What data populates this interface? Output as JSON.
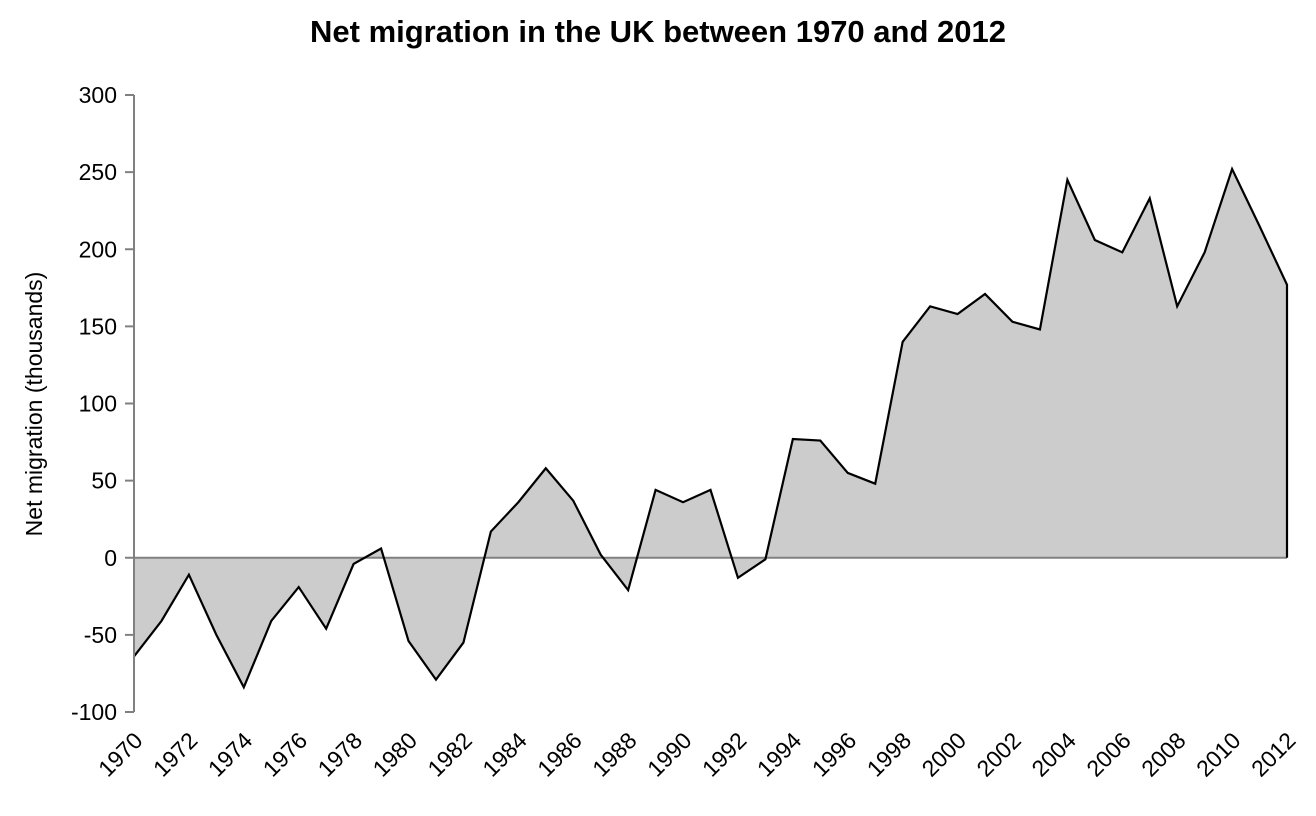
{
  "chart_data": {
    "type": "area",
    "title": "Net migration in the UK between 1970 and 2012",
    "xlabel": "",
    "ylabel": "Net migration (thousands)",
    "x": [
      1970,
      1971,
      1972,
      1973,
      1974,
      1975,
      1976,
      1977,
      1978,
      1979,
      1980,
      1981,
      1982,
      1983,
      1984,
      1985,
      1986,
      1987,
      1988,
      1989,
      1990,
      1991,
      1992,
      1993,
      1994,
      1995,
      1996,
      1997,
      1998,
      1999,
      2000,
      2001,
      2002,
      2003,
      2004,
      2005,
      2006,
      2007,
      2008,
      2009,
      2010,
      2011,
      2012
    ],
    "x_tick_labels": [
      "1970",
      "1972",
      "1974",
      "1976",
      "1978",
      "1980",
      "1982",
      "1984",
      "1986",
      "1988",
      "1990",
      "1992",
      "1994",
      "1996",
      "1998",
      "2000",
      "2002",
      "2004",
      "2006",
      "2008",
      "2010",
      "2012"
    ],
    "y_tick_labels": [
      "300",
      "250",
      "200",
      "150",
      "100",
      "50",
      "0",
      "-50",
      "-100"
    ],
    "series": [
      {
        "values": [
          -64,
          -41,
          -11,
          -50,
          -84,
          -41,
          -19,
          -46,
          -4,
          6,
          -54,
          -79,
          -55,
          17,
          36,
          58,
          37,
          2,
          -21,
          44,
          36,
          44,
          -13,
          -1,
          77,
          76,
          55,
          48,
          140,
          163,
          158,
          171,
          153,
          148,
          245,
          206,
          198,
          233,
          163,
          198,
          252,
          215,
          177
        ]
      }
    ],
    "ylim": [
      -100,
      300
    ],
    "y_ticks": [
      300,
      250,
      200,
      150,
      100,
      50,
      0,
      -50,
      -100
    ],
    "grid": false,
    "legend": "none",
    "colors": {
      "fill": "#cccccc",
      "line": "#000000",
      "axis": "#808080",
      "zero_line": "#808080"
    }
  }
}
